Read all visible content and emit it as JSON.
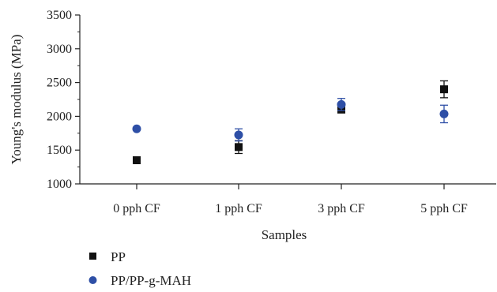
{
  "chart_data": {
    "type": "scatter",
    "categories": [
      "0 pph CF",
      "1 pph CF",
      "3 pph CF",
      "5 pph CF"
    ],
    "xlabel": "Samples",
    "ylabel": "Young's modulus (MPa)",
    "ylim": [
      1000,
      3500
    ],
    "yticks": [
      1000,
      1500,
      2000,
      2500,
      3000,
      3500
    ],
    "grid": false,
    "legend_position": "bottom-left",
    "series": [
      {
        "name": "PP",
        "marker": "square",
        "color": "#111111",
        "values": [
          1350,
          1545,
          2100,
          2400
        ],
        "errors": [
          0,
          95,
          40,
          125
        ]
      },
      {
        "name": "PP/PP-g-MAH",
        "marker": "circle",
        "color": "#2e4fa6",
        "values": [
          1815,
          1725,
          2175,
          2035
        ],
        "errors": [
          0,
          90,
          90,
          130
        ]
      }
    ]
  }
}
